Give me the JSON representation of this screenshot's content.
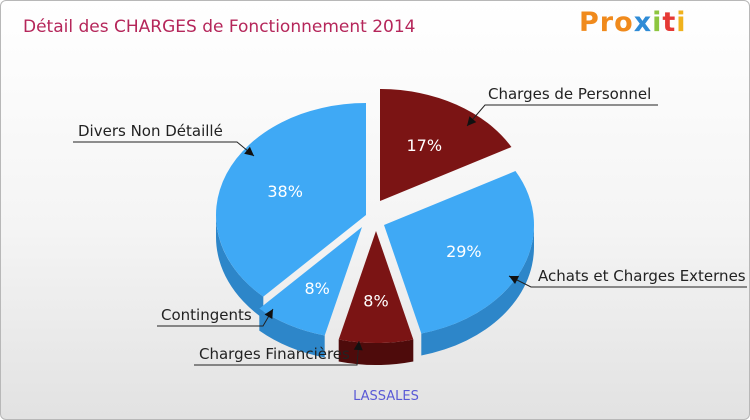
{
  "chart_data": {
    "type": "pie",
    "title": "Détail des CHARGES de Fonctionnement 2014",
    "subtitle": "LASSALES",
    "slices": [
      {
        "label": "Charges de Personnel",
        "value": 17,
        "pct_label": "17%",
        "color": "#7b1414",
        "side": "#4e0b0b"
      },
      {
        "label": "Achats et Charges Externes",
        "value": 29,
        "pct_label": "29%",
        "color": "#3fa9f5",
        "side": "#2d86c9"
      },
      {
        "label": "Charges Financières",
        "value": 8,
        "pct_label": "8%",
        "color": "#7b1414",
        "side": "#4e0b0b"
      },
      {
        "label": "Contingents",
        "value": 8,
        "pct_label": "8%",
        "color": "#3fa9f5",
        "side": "#2d86c9"
      },
      {
        "label": "Divers Non Détaillé",
        "value": 38,
        "pct_label": "38%",
        "color": "#3fa9f5",
        "side": "#2d86c9"
      }
    ]
  },
  "brand": {
    "logo_letters": [
      "P",
      "r",
      "o",
      "x",
      "i",
      "t",
      "i"
    ],
    "logo_colors": [
      "#f08a1c",
      "#f08a1c",
      "#f08a1c",
      "#2e8bd6",
      "#8dc63f",
      "#e53935",
      "#f0b21c"
    ]
  }
}
